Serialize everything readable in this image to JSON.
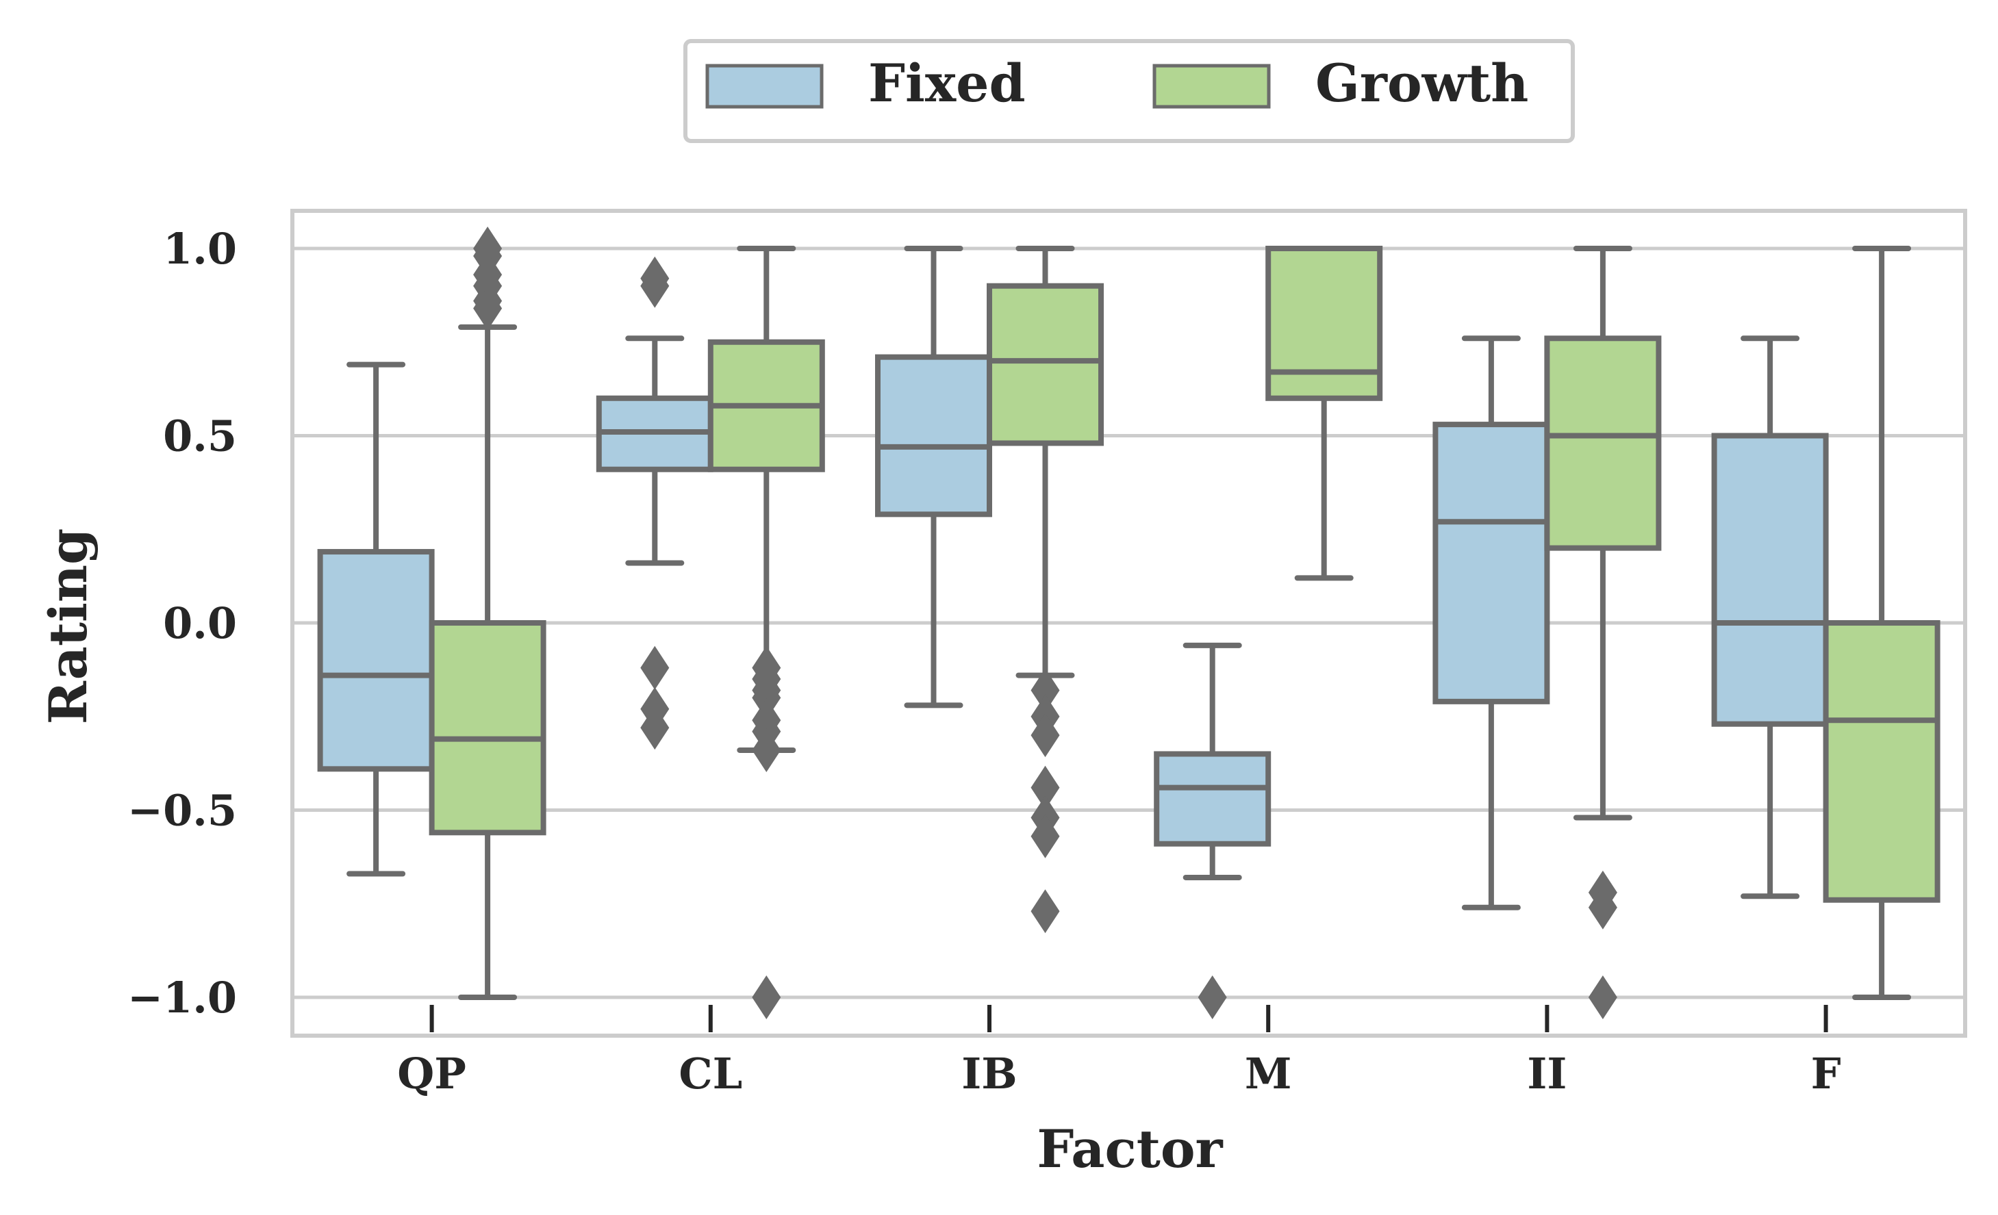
{
  "chart_data": {
    "type": "box",
    "xlabel": "Factor",
    "ylabel": "Rating",
    "ylim": [
      -1.1,
      1.1
    ],
    "yticks": [
      -1.0,
      -0.5,
      0.0,
      0.5,
      1.0
    ],
    "ytick_labels": [
      "−1.0",
      "−0.5",
      "0.0",
      "0.5",
      "1.0"
    ],
    "categories": [
      "QP",
      "CL",
      "IB",
      "M",
      "II",
      "F"
    ],
    "grid": "horizontal",
    "legend_position": "top-center",
    "colors": {
      "Fixed": "#abcce0",
      "Growth": "#b2d692",
      "edge": "#6b6b6b",
      "grid": "#cccccc",
      "frame": "#cccccc"
    },
    "series": [
      {
        "name": "Fixed",
        "boxes": [
          {
            "whislo": -0.67,
            "q1": -0.39,
            "med": -0.14,
            "q3": 0.19,
            "whishi": 0.69,
            "fliers": []
          },
          {
            "whislo": 0.16,
            "q1": 0.41,
            "med": 0.51,
            "q3": 0.6,
            "whishi": 0.76,
            "fliers": [
              0.92,
              0.9,
              -0.12,
              -0.23,
              -0.28
            ]
          },
          {
            "whislo": -0.22,
            "q1": 0.29,
            "med": 0.47,
            "q3": 0.71,
            "whishi": 1.0,
            "fliers": []
          },
          {
            "whislo": -0.68,
            "q1": -0.59,
            "med": -0.44,
            "q3": -0.35,
            "whishi": -0.06,
            "fliers": [
              -1.0
            ]
          },
          {
            "whislo": -0.76,
            "q1": -0.21,
            "med": 0.27,
            "q3": 0.53,
            "whishi": 0.76,
            "fliers": []
          },
          {
            "whislo": -0.73,
            "q1": -0.27,
            "med": 0.0,
            "q3": 0.5,
            "whishi": 0.76,
            "fliers": []
          }
        ]
      },
      {
        "name": "Growth",
        "boxes": [
          {
            "whislo": -1.0,
            "q1": -0.56,
            "med": -0.31,
            "q3": 0.0,
            "whishi": 0.79,
            "fliers": [
              1.0,
              0.98,
              0.93,
              0.9,
              0.86,
              0.84
            ]
          },
          {
            "whislo": -0.34,
            "q1": 0.41,
            "med": 0.58,
            "q3": 0.75,
            "whishi": 1.0,
            "fliers": [
              -0.12,
              -0.15,
              -0.18,
              -0.2,
              -0.26,
              -0.29,
              -0.34,
              -1.0
            ]
          },
          {
            "whislo": -0.14,
            "q1": 0.48,
            "med": 0.7,
            "q3": 0.9,
            "whishi": 1.0,
            "fliers": [
              -0.18,
              -0.25,
              -0.3,
              -0.44,
              -0.52,
              -0.57,
              -0.77
            ]
          },
          {
            "whislo": 0.12,
            "q1": 0.6,
            "med": 0.67,
            "q3": 1.0,
            "whishi": 1.0,
            "fliers": []
          },
          {
            "whislo": -0.52,
            "q1": 0.2,
            "med": 0.5,
            "q3": 0.76,
            "whishi": 1.0,
            "fliers": [
              -0.72,
              -0.76,
              -1.0
            ]
          },
          {
            "whislo": -1.0,
            "q1": -0.74,
            "med": -0.26,
            "q3": 0.0,
            "whishi": 1.0,
            "fliers": []
          }
        ]
      }
    ]
  }
}
